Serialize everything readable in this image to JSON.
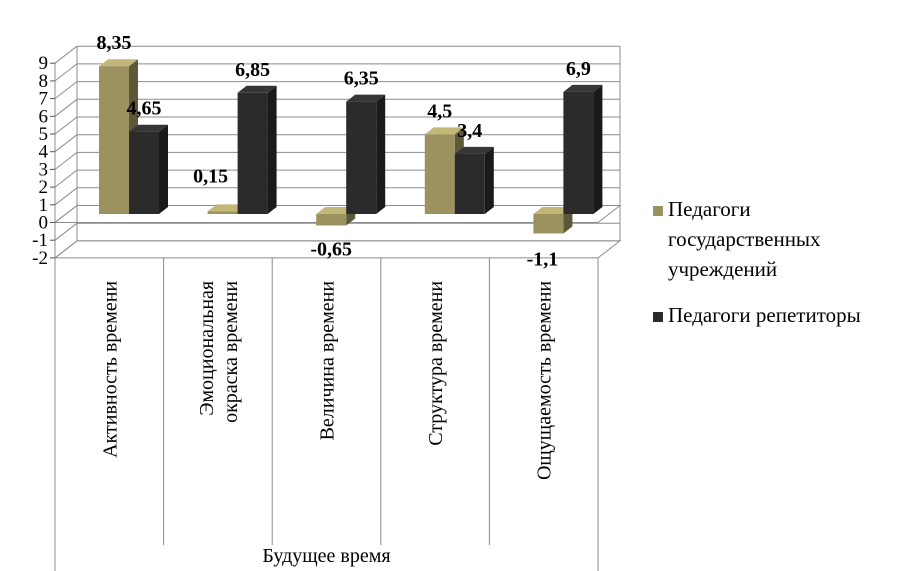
{
  "chart_data": {
    "type": "bar",
    "categories": [
      [
        "Активность времени"
      ],
      [
        "Эмоциональная",
        "окраска времени"
      ],
      [
        "Величина времени"
      ],
      [
        "Структура времени"
      ],
      [
        "Ощущаемость времени"
      ]
    ],
    "group_label": "Будущее время",
    "series": [
      {
        "name": [
          "Педагоги",
          "государственных",
          "учреждений"
        ],
        "values": [
          8.35,
          0.15,
          -0.65,
          4.5,
          -1.1
        ],
        "labels": [
          "8,35",
          "0,15",
          "-0,65",
          "4,5",
          "-1,1"
        ],
        "color": "#9c9260"
      },
      {
        "name": [
          "Педагоги репетиторы"
        ],
        "values": [
          4.65,
          6.85,
          6.35,
          3.4,
          6.9
        ],
        "labels": [
          "4,65",
          "6,85",
          "6,35",
          "3,4",
          "6,9"
        ],
        "color": "#2b2b2b"
      }
    ],
    "y_ticks": [
      "-2",
      "-1",
      "0",
      "1",
      "2",
      "3",
      "4",
      "5",
      "6",
      "7",
      "8",
      "9"
    ],
    "ylim": [
      -2,
      9
    ],
    "grid": true,
    "legend_position": "right",
    "three_d": true
  }
}
